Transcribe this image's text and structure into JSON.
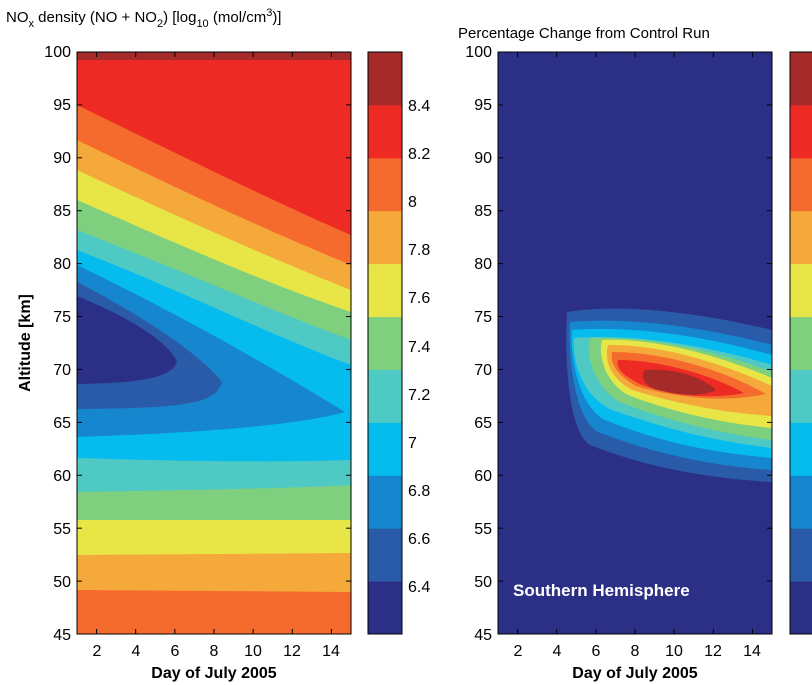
{
  "colors": [
    "#2b2f86",
    "#2a5ba8",
    "#1686cf",
    "#06bcef",
    "#4ec9c3",
    "#7ed07e",
    "#e8e646",
    "#f6a93b",
    "#f56b2e",
    "#ee2a24",
    "#a52a2a"
  ],
  "chart_data": [
    {
      "type": "heatmap",
      "title_parts": [
        "NO",
        "x",
        " density (NO + NO",
        "2",
        ") [log",
        "10",
        " (mol/cm",
        "3",
        ")]"
      ],
      "xlabel": "Day of July 2005",
      "ylabel": "Altitude [km]",
      "xlim": [
        1,
        15
      ],
      "ylim": [
        45,
        100
      ],
      "xticks": [
        "2",
        "4",
        "6",
        "8",
        "10",
        "12",
        "14"
      ],
      "yticks": [
        "45",
        "50",
        "55",
        "60",
        "65",
        "70",
        "75",
        "80",
        "85",
        "90",
        "95",
        "100"
      ],
      "colorbar": {
        "levels": [
          6.2,
          6.4,
          6.6,
          6.8,
          7.0,
          7.2,
          7.4,
          7.6,
          7.8,
          8.0,
          8.2,
          8.4,
          8.6
        ],
        "labels": [
          "6.4",
          "6.6",
          "6.8",
          "7",
          "7.2",
          "7.4",
          "7.6",
          "7.8",
          "8",
          "8.2",
          "8.4"
        ]
      }
    },
    {
      "type": "heatmap",
      "title": "Percentage Change from Control Run",
      "xlabel": "Day of July 2005",
      "xlim": [
        1,
        15
      ],
      "ylim": [
        45,
        100
      ],
      "xticks": [
        "2",
        "4",
        "6",
        "8",
        "10",
        "12",
        "14"
      ],
      "yticks": [
        "45",
        "50",
        "55",
        "60",
        "65",
        "70",
        "75",
        "80",
        "85",
        "90",
        "95",
        "100"
      ],
      "annotation": "Southern Hemisphere",
      "peak": {
        "day": 10,
        "altitude": 68.5
      }
    }
  ]
}
